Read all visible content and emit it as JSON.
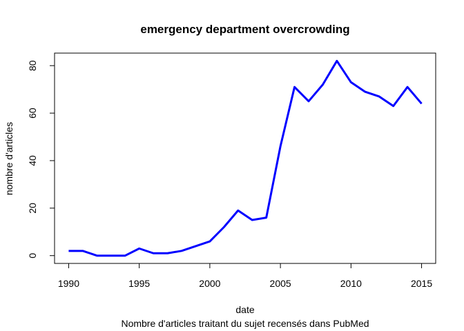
{
  "chart_data": {
    "type": "line",
    "title": "emergency department overcrowding",
    "xlabel": "date",
    "ylabel": "nombre d'articles",
    "subtitle": "Nombre d'articles traitant du sujet recensés dans PubMed",
    "x": [
      1990,
      1991,
      1992,
      1993,
      1994,
      1995,
      1996,
      1997,
      1998,
      1999,
      2000,
      2001,
      2002,
      2003,
      2004,
      2005,
      2006,
      2007,
      2008,
      2009,
      2010,
      2011,
      2012,
      2013,
      2014,
      2015
    ],
    "series": [
      {
        "values": [
          2,
          2,
          0,
          0,
          0,
          3,
          1,
          1,
          2,
          4,
          6,
          12,
          19,
          15,
          16,
          46,
          71,
          65,
          72,
          82,
          73,
          69,
          67,
          63,
          71,
          64
        ],
        "color": "#0000ff"
      }
    ],
    "xticks": [
      "1990",
      "1995",
      "2000",
      "2005",
      "2010",
      "2015"
    ],
    "yticks": [
      "0",
      "20",
      "40",
      "60",
      "80"
    ],
    "xlim": [
      1989.0,
      2016.0
    ],
    "ylim": [
      -3.28,
      85.28
    ],
    "grid": false,
    "legend": "none"
  }
}
